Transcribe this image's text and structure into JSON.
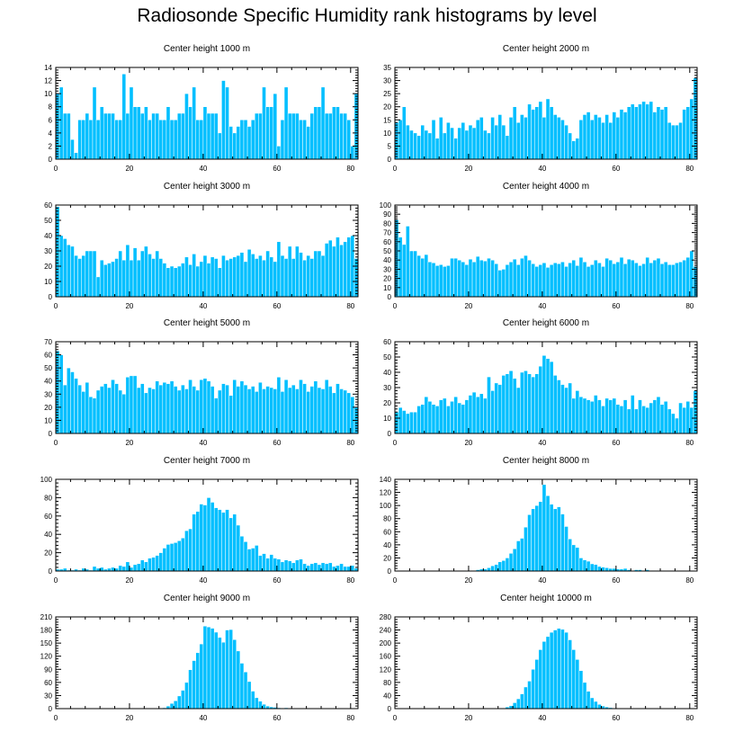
{
  "title": "Radiosonde Specific Humidity rank histograms by level",
  "colors": {
    "bar": "#00bfff",
    "axis": "#000000",
    "background": "#ffffff"
  },
  "chart_data": [
    {
      "type": "bar",
      "title": "Center height 1000 m",
      "xlim": [
        0,
        82
      ],
      "ylim": [
        0,
        14
      ],
      "xticks": [
        0,
        20,
        40,
        60,
        80
      ],
      "yticks": [
        0,
        2,
        4,
        6,
        8,
        10,
        12,
        14
      ],
      "values": [
        10,
        11,
        7,
        7,
        3,
        1,
        6,
        6,
        7,
        6,
        11,
        6,
        8,
        7,
        7,
        7,
        6,
        6,
        13,
        7,
        11,
        8,
        8,
        7,
        8,
        6,
        7,
        7,
        6,
        6,
        8,
        6,
        6,
        7,
        7,
        10,
        8,
        11,
        6,
        6,
        8,
        7,
        7,
        7,
        4,
        12,
        11,
        5,
        4,
        5,
        6,
        6,
        5,
        6,
        7,
        7,
        11,
        8,
        8,
        10,
        2,
        6,
        11,
        7,
        7,
        7,
        6,
        6,
        5,
        7,
        8,
        8,
        11,
        7,
        7,
        8,
        8,
        7,
        7,
        6,
        2,
        10
      ]
    },
    {
      "type": "bar",
      "title": "Center height 2000 m",
      "xlim": [
        0,
        82
      ],
      "ylim": [
        0,
        35
      ],
      "xticks": [
        0,
        20,
        40,
        60,
        80
      ],
      "yticks": [
        0,
        5,
        10,
        15,
        20,
        25,
        30,
        35
      ],
      "values": [
        14,
        15,
        20,
        13,
        11,
        10,
        9,
        13,
        11,
        10,
        15,
        8,
        16,
        10,
        14,
        12,
        8,
        12,
        14,
        11,
        13,
        12,
        15,
        16,
        11,
        10,
        16,
        13,
        17,
        13,
        9,
        16,
        20,
        14,
        17,
        16,
        21,
        19,
        20,
        22,
        16,
        23,
        20,
        17,
        16,
        15,
        13,
        10,
        7,
        8,
        15,
        17,
        18,
        15,
        17,
        16,
        14,
        17,
        14,
        18,
        16,
        19,
        18,
        20,
        21,
        20,
        21,
        22,
        21,
        22,
        18,
        20,
        19,
        20,
        14,
        13,
        13,
        14,
        19,
        20,
        23,
        31
      ]
    },
    {
      "type": "bar",
      "title": "Center height 3000 m",
      "xlim": [
        0,
        82
      ],
      "ylim": [
        0,
        60
      ],
      "xticks": [
        0,
        20,
        40,
        60,
        80
      ],
      "yticks": [
        0,
        10,
        20,
        30,
        40,
        50,
        60
      ],
      "values": [
        59,
        40,
        38,
        34,
        33,
        27,
        25,
        27,
        30,
        30,
        30,
        13,
        24,
        21,
        22,
        23,
        25,
        30,
        24,
        34,
        24,
        32,
        24,
        30,
        33,
        28,
        25,
        30,
        25,
        22,
        19,
        20,
        19,
        20,
        22,
        26,
        21,
        28,
        20,
        23,
        27,
        22,
        26,
        25,
        19,
        27,
        24,
        25,
        26,
        27,
        29,
        23,
        31,
        28,
        25,
        27,
        24,
        30,
        26,
        23,
        36,
        27,
        25,
        33,
        25,
        33,
        29,
        24,
        27,
        25,
        30,
        30,
        27,
        35,
        37,
        33,
        39,
        34,
        36,
        39,
        40,
        25
      ]
    },
    {
      "type": "bar",
      "title": "Center height 4000 m",
      "xlim": [
        0,
        82
      ],
      "ylim": [
        0,
        100
      ],
      "xticks": [
        0,
        20,
        40,
        60,
        80
      ],
      "yticks": [
        0,
        10,
        20,
        30,
        40,
        50,
        60,
        70,
        80,
        90,
        100
      ],
      "values": [
        84,
        65,
        57,
        77,
        50,
        50,
        45,
        42,
        46,
        38,
        37,
        34,
        35,
        33,
        34,
        42,
        42,
        40,
        38,
        35,
        41,
        38,
        44,
        40,
        39,
        42,
        40,
        36,
        29,
        30,
        35,
        38,
        41,
        35,
        42,
        45,
        40,
        36,
        33,
        35,
        37,
        32,
        35,
        37,
        36,
        38,
        33,
        37,
        40,
        34,
        43,
        38,
        33,
        35,
        40,
        37,
        33,
        42,
        40,
        36,
        38,
        43,
        36,
        41,
        40,
        37,
        34,
        36,
        43,
        37,
        40,
        42,
        36,
        38,
        35,
        35,
        37,
        38,
        40,
        43,
        50,
        33
      ]
    },
    {
      "type": "bar",
      "title": "Center height 5000 m",
      "xlim": [
        0,
        82
      ],
      "ylim": [
        0,
        70
      ],
      "xticks": [
        0,
        20,
        40,
        60,
        80
      ],
      "yticks": [
        0,
        10,
        20,
        30,
        40,
        50,
        60,
        70
      ],
      "values": [
        63,
        60,
        37,
        50,
        47,
        42,
        37,
        32,
        39,
        28,
        27,
        33,
        36,
        38,
        35,
        41,
        38,
        33,
        30,
        43,
        44,
        44,
        35,
        38,
        31,
        35,
        34,
        40,
        37,
        39,
        38,
        40,
        36,
        33,
        37,
        34,
        41,
        36,
        33,
        41,
        42,
        40,
        36,
        27,
        33,
        38,
        37,
        29,
        41,
        36,
        40,
        37,
        34,
        36,
        32,
        39,
        34,
        36,
        35,
        34,
        43,
        32,
        41,
        35,
        37,
        34,
        41,
        38,
        32,
        36,
        40,
        35,
        34,
        41,
        36,
        31,
        38,
        34,
        33,
        31,
        28,
        20
      ]
    },
    {
      "type": "bar",
      "title": "Center height 6000 m",
      "xlim": [
        0,
        82
      ],
      "ylim": [
        0,
        60
      ],
      "xticks": [
        0,
        20,
        40,
        60,
        80
      ],
      "yticks": [
        0,
        10,
        20,
        30,
        40,
        50,
        60
      ],
      "values": [
        14,
        17,
        15,
        13,
        14,
        14,
        18,
        19,
        24,
        21,
        19,
        18,
        22,
        23,
        18,
        21,
        24,
        20,
        19,
        22,
        25,
        27,
        24,
        26,
        23,
        37,
        28,
        33,
        32,
        38,
        39,
        41,
        36,
        30,
        40,
        41,
        39,
        37,
        39,
        44,
        51,
        49,
        47,
        38,
        35,
        32,
        30,
        33,
        23,
        28,
        24,
        23,
        22,
        21,
        25,
        22,
        18,
        23,
        22,
        23,
        19,
        18,
        22,
        16,
        25,
        16,
        22,
        18,
        17,
        20,
        22,
        24,
        19,
        21,
        16,
        13,
        10,
        20,
        17,
        21,
        17,
        28
      ]
    },
    {
      "type": "bar",
      "title": "Center height 7000 m",
      "xlim": [
        0,
        82
      ],
      "ylim": [
        0,
        100
      ],
      "xticks": [
        0,
        20,
        40,
        60,
        80
      ],
      "yticks": [
        0,
        20,
        40,
        60,
        80,
        100
      ],
      "values": [
        2,
        2,
        3,
        1,
        1,
        2,
        1,
        3,
        2,
        1,
        5,
        3,
        4,
        2,
        3,
        4,
        3,
        6,
        5,
        10,
        4,
        7,
        8,
        12,
        10,
        14,
        15,
        17,
        20,
        25,
        29,
        30,
        31,
        33,
        36,
        44,
        46,
        62,
        65,
        73,
        72,
        80,
        75,
        69,
        67,
        64,
        67,
        58,
        62,
        50,
        38,
        32,
        24,
        25,
        28,
        17,
        19,
        14,
        18,
        14,
        13,
        10,
        12,
        11,
        9,
        12,
        13,
        8,
        6,
        8,
        9,
        7,
        9,
        8,
        9,
        5,
        6,
        8,
        5,
        5,
        6,
        3
      ]
    },
    {
      "type": "bar",
      "title": "Center height 8000 m",
      "xlim": [
        0,
        82
      ],
      "ylim": [
        0,
        140
      ],
      "xticks": [
        0,
        20,
        40,
        60,
        80
      ],
      "yticks": [
        0,
        20,
        40,
        60,
        80,
        100,
        120,
        140
      ],
      "values": [
        0,
        0,
        0,
        0,
        0,
        0,
        0,
        0,
        0,
        0,
        0,
        0,
        0,
        0,
        0,
        0,
        0,
        0,
        0,
        0,
        1,
        1,
        2,
        3,
        3,
        5,
        8,
        10,
        14,
        16,
        20,
        27,
        34,
        46,
        50,
        67,
        86,
        95,
        100,
        106,
        132,
        115,
        102,
        95,
        98,
        87,
        68,
        49,
        40,
        36,
        20,
        17,
        15,
        11,
        10,
        7,
        6,
        5,
        4,
        4,
        3,
        3,
        4,
        2,
        1,
        2,
        2,
        1,
        2,
        1,
        1,
        1,
        1,
        0,
        1,
        0,
        0,
        0,
        0,
        0,
        1,
        0
      ]
    },
    {
      "type": "bar",
      "title": "Center height 9000 m",
      "xlim": [
        0,
        82
      ],
      "ylim": [
        0,
        210
      ],
      "xticks": [
        0,
        20,
        40,
        60,
        80
      ],
      "yticks": [
        0,
        30,
        60,
        90,
        120,
        150,
        180,
        210
      ],
      "values": [
        0,
        0,
        0,
        0,
        0,
        0,
        0,
        0,
        0,
        0,
        0,
        0,
        0,
        0,
        0,
        0,
        0,
        0,
        0,
        0,
        0,
        0,
        0,
        0,
        0,
        0,
        0,
        0,
        1,
        2,
        6,
        12,
        18,
        29,
        42,
        60,
        89,
        110,
        128,
        148,
        189,
        187,
        184,
        175,
        163,
        152,
        180,
        181,
        158,
        132,
        104,
        84,
        62,
        40,
        25,
        17,
        10,
        6,
        4,
        3,
        2,
        1,
        2,
        1,
        0,
        1,
        0,
        0,
        0,
        0,
        0,
        0,
        0,
        0,
        0,
        0,
        0,
        0,
        0,
        0,
        0,
        0
      ]
    },
    {
      "type": "bar",
      "title": "Center height 10000 m",
      "xlim": [
        0,
        82
      ],
      "ylim": [
        0,
        280
      ],
      "xticks": [
        0,
        20,
        40,
        60,
        80
      ],
      "yticks": [
        0,
        40,
        80,
        120,
        160,
        200,
        240,
        280
      ],
      "values": [
        0,
        0,
        0,
        0,
        0,
        0,
        0,
        0,
        0,
        0,
        0,
        0,
        0,
        0,
        0,
        0,
        0,
        0,
        0,
        0,
        0,
        0,
        0,
        0,
        0,
        0,
        0,
        0,
        1,
        2,
        5,
        9,
        18,
        30,
        45,
        66,
        84,
        120,
        150,
        180,
        205,
        220,
        233,
        240,
        245,
        242,
        233,
        210,
        180,
        150,
        116,
        80,
        53,
        33,
        22,
        13,
        8,
        5,
        3,
        2,
        1,
        1,
        0,
        0,
        0,
        0,
        0,
        0,
        0,
        0,
        0,
        0,
        0,
        0,
        0,
        0,
        0,
        0,
        0,
        0,
        0,
        0
      ]
    }
  ]
}
